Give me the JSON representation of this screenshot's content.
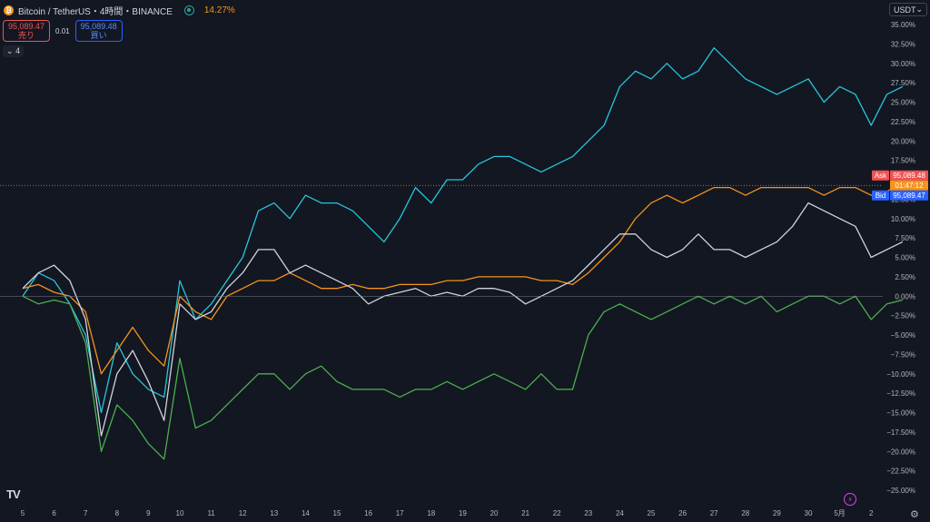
{
  "header": {
    "symbol_icon": "bitcoin-icon",
    "title": "Bitcoin / TetherUS・4時間・BINANCE",
    "status_icon": "live-dot-icon",
    "change": "14.27%"
  },
  "trade": {
    "sell_price": "95,089.47",
    "sell_label": "売り",
    "spread": "0.01",
    "buy_price": "95,089.48",
    "buy_label": "買い"
  },
  "collapse": {
    "icon": "chevron-down-icon",
    "count": "4"
  },
  "currency_label": "USDT",
  "chart_data": {
    "type": "line",
    "x_labels": [
      "5",
      "6",
      "7",
      "8",
      "9",
      "10",
      "11",
      "12",
      "13",
      "14",
      "15",
      "16",
      "17",
      "18",
      "19",
      "20",
      "21",
      "22",
      "23",
      "24",
      "25",
      "26",
      "27",
      "28",
      "29",
      "30",
      "5月",
      "2"
    ],
    "y_unit": "%",
    "ylim": [
      -25,
      35
    ],
    "y_ticks": [
      "35.00%",
      "32.50%",
      "30.00%",
      "27.50%",
      "25.00%",
      "22.50%",
      "20.00%",
      "17.50%",
      "15.00%",
      "12.50%",
      "10.00%",
      "7.50%",
      "5.00%",
      "2.50%",
      "0.00%",
      "−2.50%",
      "−5.00%",
      "−7.50%",
      "−10.00%",
      "−12.50%",
      "−15.00%",
      "−17.50%",
      "−20.00%",
      "−22.50%",
      "−25.00%"
    ],
    "zero_line": true,
    "grid": false,
    "series": [
      {
        "color": "#26c6da",
        "points": [
          [
            0,
            0
          ],
          [
            0.5,
            3
          ],
          [
            1,
            2
          ],
          [
            1.5,
            -1
          ],
          [
            2,
            -5
          ],
          [
            2.5,
            -15
          ],
          [
            3,
            -6
          ],
          [
            3.5,
            -10
          ],
          [
            4,
            -12
          ],
          [
            4.5,
            -13
          ],
          [
            5,
            2
          ],
          [
            5.5,
            -3
          ],
          [
            6,
            -1
          ],
          [
            6.5,
            2
          ],
          [
            7,
            5
          ],
          [
            7.5,
            11
          ],
          [
            8,
            12
          ],
          [
            8.5,
            10
          ],
          [
            9,
            13
          ],
          [
            9.5,
            12
          ],
          [
            10,
            12
          ],
          [
            10.5,
            11
          ],
          [
            11,
            9
          ],
          [
            11.5,
            7
          ],
          [
            12,
            10
          ],
          [
            12.5,
            14
          ],
          [
            13,
            12
          ],
          [
            13.5,
            15
          ],
          [
            14,
            15
          ],
          [
            14.5,
            17
          ],
          [
            15,
            18
          ],
          [
            15.5,
            18
          ],
          [
            16,
            17
          ],
          [
            16.5,
            16
          ],
          [
            17,
            17
          ],
          [
            17.5,
            18
          ],
          [
            18,
            20
          ],
          [
            18.5,
            22
          ],
          [
            19,
            27
          ],
          [
            19.5,
            29
          ],
          [
            20,
            28
          ],
          [
            20.5,
            30
          ],
          [
            21,
            28
          ],
          [
            21.5,
            29
          ],
          [
            22,
            32
          ],
          [
            22.5,
            30
          ],
          [
            23,
            28
          ],
          [
            23.5,
            27
          ],
          [
            24,
            26
          ],
          [
            24.5,
            27
          ],
          [
            25,
            28
          ],
          [
            25.5,
            25
          ],
          [
            26,
            27
          ],
          [
            26.5,
            26
          ],
          [
            27,
            22
          ],
          [
            27.5,
            26
          ],
          [
            28,
            27
          ]
        ]
      },
      {
        "color": "#f7931a",
        "points": [
          [
            0,
            1
          ],
          [
            0.5,
            1.5
          ],
          [
            1,
            0.5
          ],
          [
            1.5,
            0
          ],
          [
            2,
            -2
          ],
          [
            2.5,
            -10
          ],
          [
            3,
            -7
          ],
          [
            3.5,
            -4
          ],
          [
            4,
            -7
          ],
          [
            4.5,
            -9
          ],
          [
            5,
            0
          ],
          [
            5.5,
            -2
          ],
          [
            6,
            -3
          ],
          [
            6.5,
            0
          ],
          [
            7,
            1
          ],
          [
            7.5,
            2
          ],
          [
            8,
            2
          ],
          [
            8.5,
            3
          ],
          [
            9,
            2
          ],
          [
            9.5,
            1
          ],
          [
            10,
            1
          ],
          [
            10.5,
            1.5
          ],
          [
            11,
            1
          ],
          [
            11.5,
            1
          ],
          [
            12,
            1.5
          ],
          [
            12.5,
            1.5
          ],
          [
            13,
            1.5
          ],
          [
            13.5,
            2
          ],
          [
            14,
            2
          ],
          [
            14.5,
            2.5
          ],
          [
            15,
            2.5
          ],
          [
            15.5,
            2.5
          ],
          [
            16,
            2.5
          ],
          [
            16.5,
            2
          ],
          [
            17,
            2
          ],
          [
            17.5,
            1.5
          ],
          [
            18,
            3
          ],
          [
            18.5,
            5
          ],
          [
            19,
            7
          ],
          [
            19.5,
            10
          ],
          [
            20,
            12
          ],
          [
            20.5,
            13
          ],
          [
            21,
            12
          ],
          [
            21.5,
            13
          ],
          [
            22,
            14
          ],
          [
            22.5,
            14
          ],
          [
            23,
            13
          ],
          [
            23.5,
            14
          ],
          [
            24,
            14
          ],
          [
            24.5,
            14
          ],
          [
            25,
            14
          ],
          [
            25.5,
            13
          ],
          [
            26,
            14
          ],
          [
            26.5,
            14
          ],
          [
            27,
            13
          ],
          [
            27.5,
            13.5
          ],
          [
            28,
            14.5
          ]
        ]
      },
      {
        "color": "#d1d4dc",
        "points": [
          [
            0,
            1
          ],
          [
            0.5,
            3
          ],
          [
            1,
            4
          ],
          [
            1.5,
            2
          ],
          [
            2,
            -3
          ],
          [
            2.5,
            -18
          ],
          [
            3,
            -10
          ],
          [
            3.5,
            -7
          ],
          [
            4,
            -11
          ],
          [
            4.5,
            -16
          ],
          [
            5,
            -1
          ],
          [
            5.5,
            -3
          ],
          [
            6,
            -2
          ],
          [
            6.5,
            1
          ],
          [
            7,
            3
          ],
          [
            7.5,
            6
          ],
          [
            8,
            6
          ],
          [
            8.5,
            3
          ],
          [
            9,
            4
          ],
          [
            9.5,
            3
          ],
          [
            10,
            2
          ],
          [
            10.5,
            1
          ],
          [
            11,
            -1
          ],
          [
            11.5,
            0
          ],
          [
            12,
            0.5
          ],
          [
            12.5,
            1
          ],
          [
            13,
            0
          ],
          [
            13.5,
            0.5
          ],
          [
            14,
            0
          ],
          [
            14.5,
            1
          ],
          [
            15,
            1
          ],
          [
            15.5,
            0.5
          ],
          [
            16,
            -1
          ],
          [
            16.5,
            0
          ],
          [
            17,
            1
          ],
          [
            17.5,
            2
          ],
          [
            18,
            4
          ],
          [
            18.5,
            6
          ],
          [
            19,
            8
          ],
          [
            19.5,
            8
          ],
          [
            20,
            6
          ],
          [
            20.5,
            5
          ],
          [
            21,
            6
          ],
          [
            21.5,
            8
          ],
          [
            22,
            6
          ],
          [
            22.5,
            6
          ],
          [
            23,
            5
          ],
          [
            23.5,
            6
          ],
          [
            24,
            7
          ],
          [
            24.5,
            9
          ],
          [
            25,
            12
          ],
          [
            25.5,
            11
          ],
          [
            26,
            10
          ],
          [
            26.5,
            9
          ],
          [
            27,
            5
          ],
          [
            27.5,
            6
          ],
          [
            28,
            7
          ]
        ]
      },
      {
        "color": "#4caf50",
        "points": [
          [
            0,
            0
          ],
          [
            0.5,
            -1
          ],
          [
            1,
            -0.5
          ],
          [
            1.5,
            -1
          ],
          [
            2,
            -6
          ],
          [
            2.5,
            -20
          ],
          [
            3,
            -14
          ],
          [
            3.5,
            -16
          ],
          [
            4,
            -19
          ],
          [
            4.5,
            -21
          ],
          [
            5,
            -8
          ],
          [
            5.5,
            -17
          ],
          [
            6,
            -16
          ],
          [
            6.5,
            -14
          ],
          [
            7,
            -12
          ],
          [
            7.5,
            -10
          ],
          [
            8,
            -10
          ],
          [
            8.5,
            -12
          ],
          [
            9,
            -10
          ],
          [
            9.5,
            -9
          ],
          [
            10,
            -11
          ],
          [
            10.5,
            -12
          ],
          [
            11,
            -12
          ],
          [
            11.5,
            -12
          ],
          [
            12,
            -13
          ],
          [
            12.5,
            -12
          ],
          [
            13,
            -12
          ],
          [
            13.5,
            -11
          ],
          [
            14,
            -12
          ],
          [
            14.5,
            -11
          ],
          [
            15,
            -10
          ],
          [
            15.5,
            -11
          ],
          [
            16,
            -12
          ],
          [
            16.5,
            -10
          ],
          [
            17,
            -12
          ],
          [
            17.5,
            -12
          ],
          [
            18,
            -5
          ],
          [
            18.5,
            -2
          ],
          [
            19,
            -1
          ],
          [
            19.5,
            -2
          ],
          [
            20,
            -3
          ],
          [
            20.5,
            -2
          ],
          [
            21,
            -1
          ],
          [
            21.5,
            0
          ],
          [
            22,
            -1
          ],
          [
            22.5,
            0
          ],
          [
            23,
            -1
          ],
          [
            23.5,
            0
          ],
          [
            24,
            -2
          ],
          [
            24.5,
            -1
          ],
          [
            25,
            0
          ],
          [
            25.5,
            0
          ],
          [
            26,
            -1
          ],
          [
            26.5,
            0
          ],
          [
            27,
            -3
          ],
          [
            27.5,
            -1
          ],
          [
            28,
            -0.5
          ]
        ]
      }
    ],
    "markers": {
      "ask_label": "Ask",
      "ask_price": "95,089.48",
      "ask_color": "#ef5350",
      "countdown": "01:47:12",
      "countdown_color": "#f7931a",
      "bid_label": "Bid",
      "bid_price": "95,089.47",
      "bid_color": "#2962ff",
      "current_pct": 14.27
    }
  },
  "footer": {
    "logo": "TV",
    "bolt_icon": "lightning-icon",
    "settings_icon": "gear-icon"
  }
}
